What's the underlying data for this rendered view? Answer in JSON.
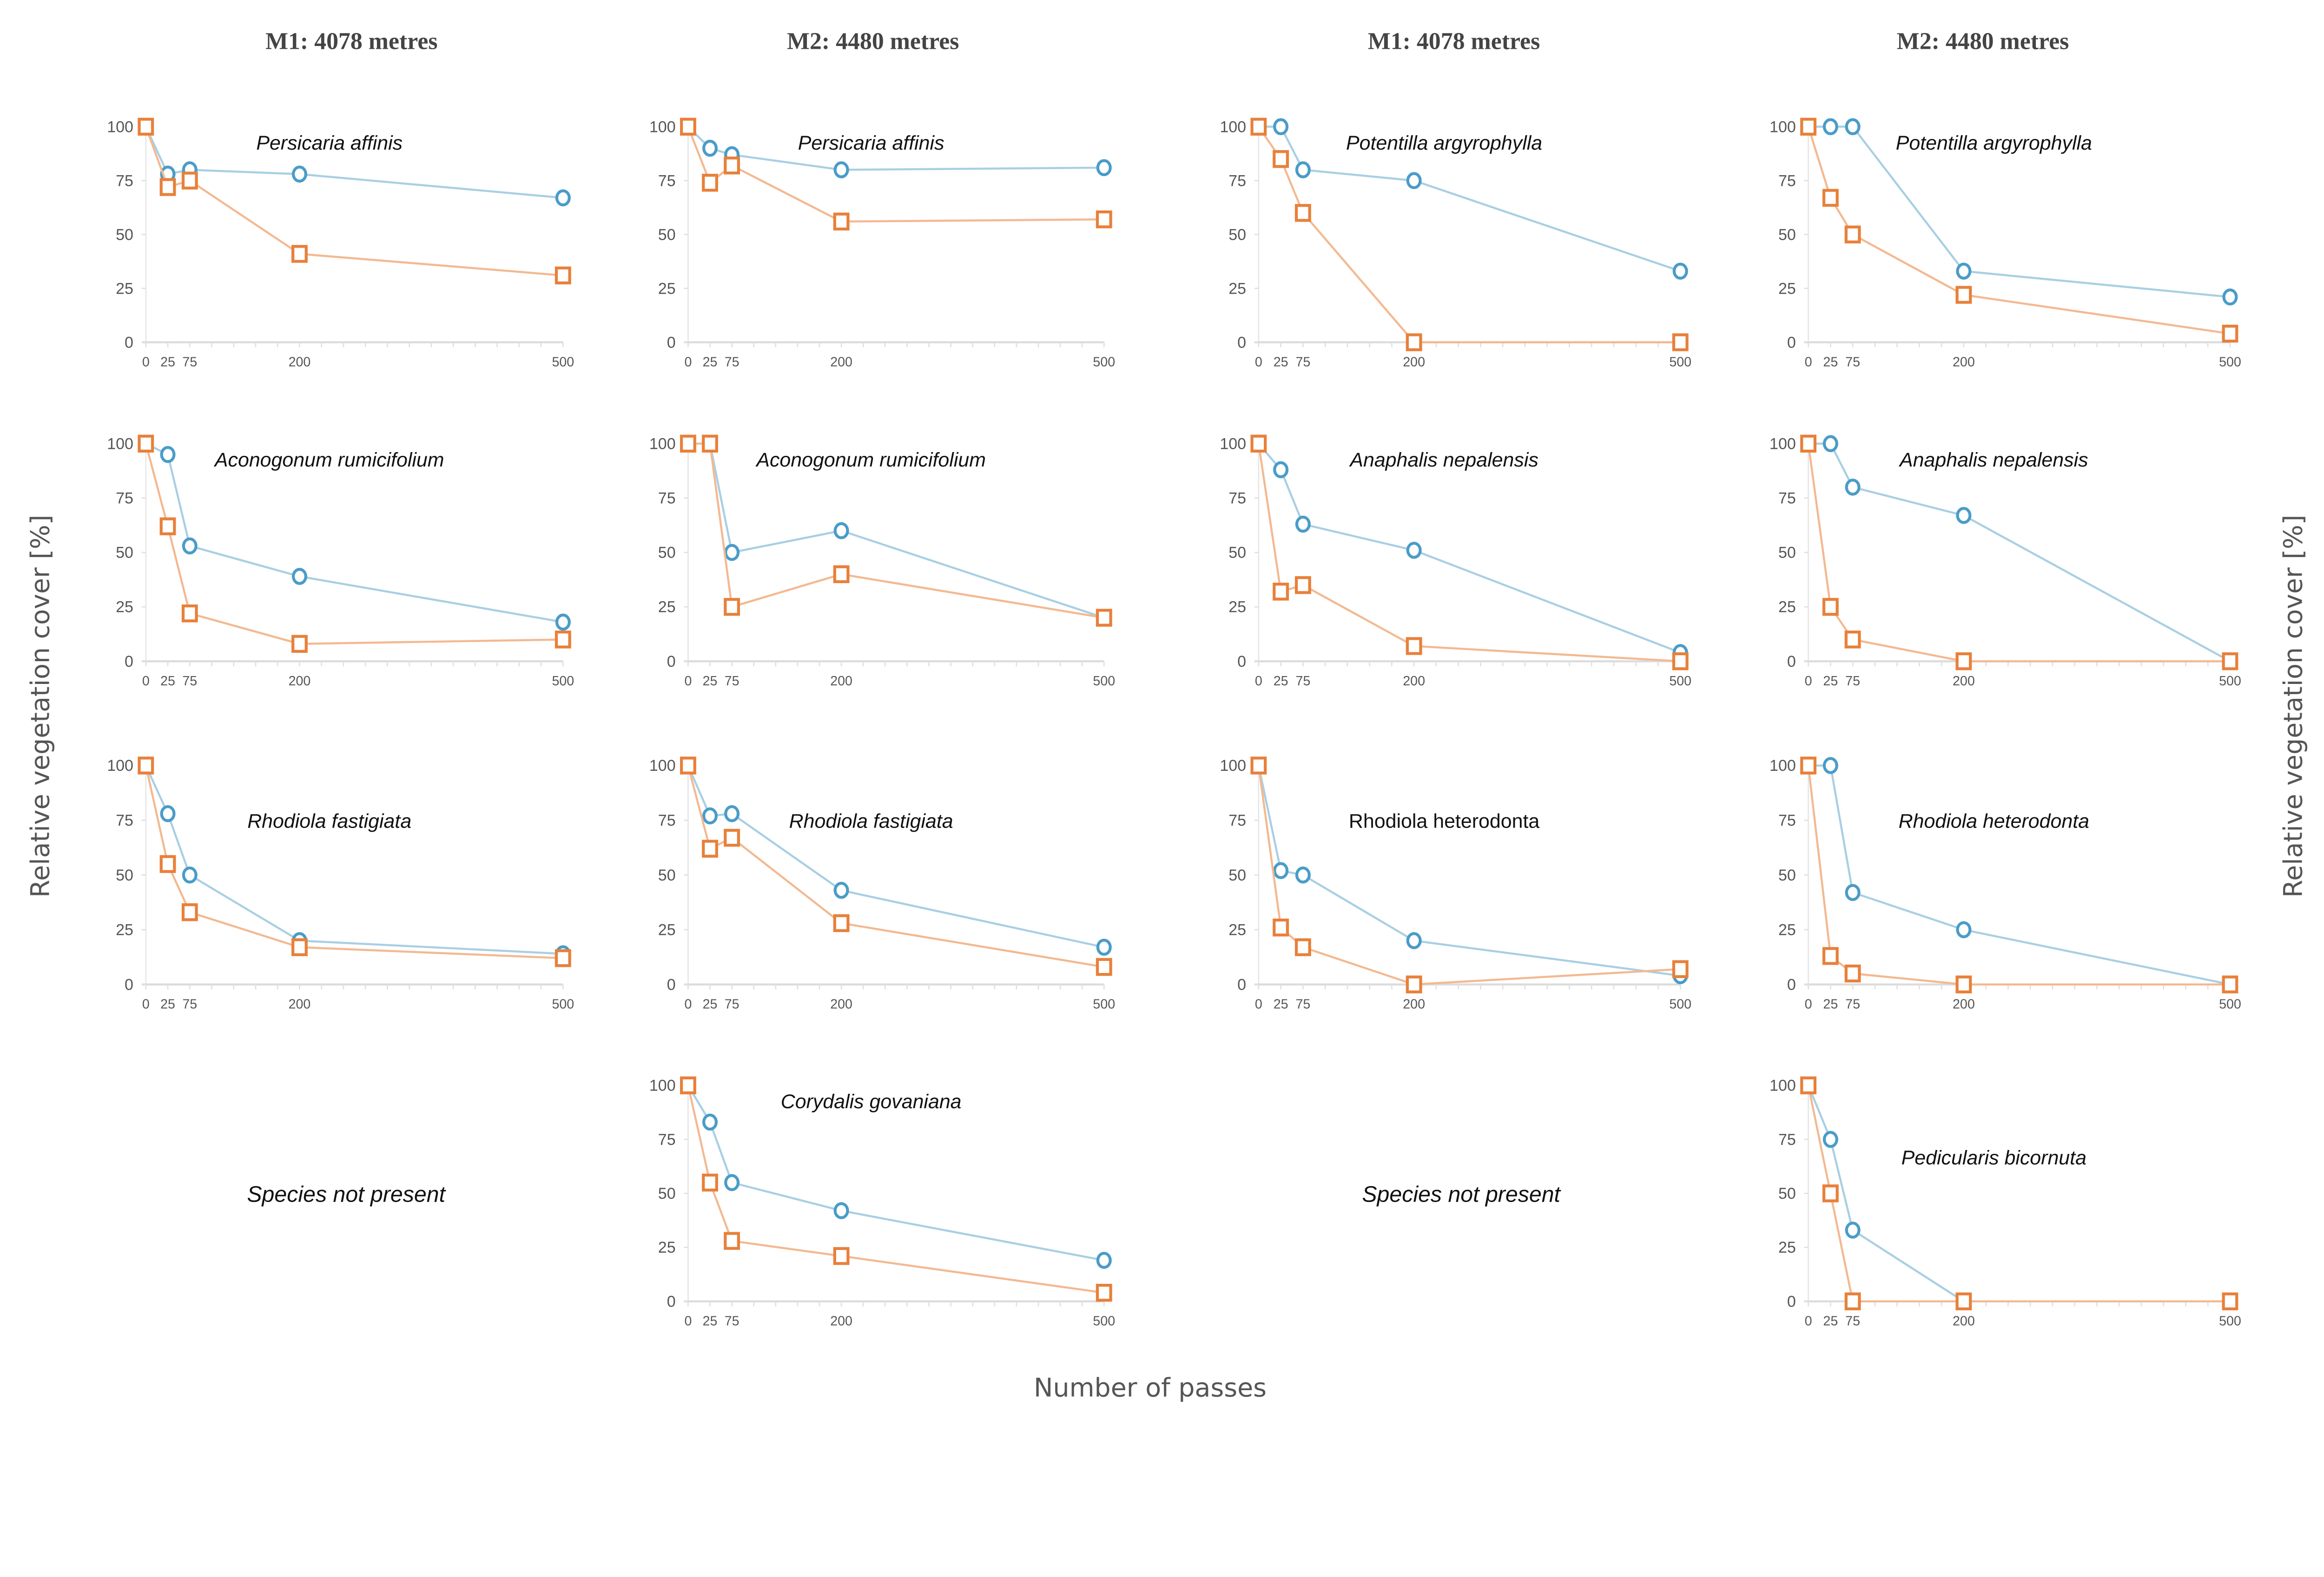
{
  "axis": {
    "ylabel": "Relative vegetation cover [%]",
    "xlabel": "Number of passes"
  },
  "column_headers": [
    "M1: 4078 metres",
    "M2: 4480 metres",
    "M1: 4078 metres",
    "M2: 4480 metres"
  ],
  "colors": {
    "blue_marker": "#4a9cc8",
    "blue_line": "#a9cfe3",
    "orange_marker": "#e8803a",
    "orange_line": "#f3b991"
  },
  "chart_data": {
    "type": "line",
    "x": [
      0,
      25,
      75,
      200,
      500
    ],
    "x_tick_labels": [
      "0",
      "25",
      "75",
      "200",
      "500"
    ],
    "y_ticks": [
      0,
      25,
      50,
      75,
      100
    ],
    "ylim": [
      0,
      100
    ],
    "grid": false,
    "marker_blue": "circle",
    "marker_orange": "square",
    "rows": [
      {
        "panels": [
          {
            "species": "Persicaria affinis",
            "blue": [
              100,
              78,
              80,
              78,
              67
            ],
            "orange": [
              100,
              72,
              75,
              41,
              31
            ]
          },
          {
            "species": "Persicaria affinis",
            "blue": [
              100,
              90,
              87,
              80,
              81
            ],
            "orange": [
              100,
              74,
              82,
              56,
              57
            ]
          },
          {
            "species": "Potentilla argyrophylla",
            "blue": [
              100,
              100,
              80,
              75,
              33
            ],
            "orange": [
              100,
              85,
              60,
              0,
              0
            ]
          },
          {
            "species": "Potentilla argyrophylla",
            "blue": [
              100,
              100,
              100,
              33,
              21
            ],
            "orange": [
              100,
              67,
              50,
              22,
              4
            ]
          }
        ]
      },
      {
        "panels": [
          {
            "species": "Aconogonum rumicifolium",
            "blue": [
              100,
              95,
              53,
              39,
              18
            ],
            "orange": [
              100,
              62,
              22,
              8,
              10
            ]
          },
          {
            "species": "Aconogonum rumicifolium",
            "blue": [
              100,
              100,
              50,
              60,
              20
            ],
            "orange": [
              100,
              100,
              25,
              40,
              20
            ]
          },
          {
            "species": "Anaphalis nepalensis",
            "blue": [
              100,
              88,
              63,
              51,
              4
            ],
            "orange": [
              100,
              32,
              35,
              7,
              0
            ]
          },
          {
            "species": "Anaphalis nepalensis",
            "blue": [
              100,
              100,
              80,
              67,
              0
            ],
            "orange": [
              100,
              25,
              10,
              0,
              0
            ]
          }
        ]
      },
      {
        "panels": [
          {
            "species": "Rhodiola fastigiata",
            "blue": [
              100,
              78,
              50,
              20,
              14
            ],
            "orange": [
              100,
              55,
              33,
              17,
              12
            ]
          },
          {
            "species": "Rhodiola fastigiata",
            "blue": [
              100,
              77,
              78,
              43,
              17
            ],
            "orange": [
              100,
              62,
              67,
              28,
              8
            ]
          },
          {
            "species": "Rhodiola heterodonta",
            "blue": [
              100,
              52,
              50,
              20,
              4
            ],
            "orange": [
              100,
              26,
              17,
              0,
              7
            ]
          },
          {
            "species": "Rhodiola heterodonta",
            "blue": [
              100,
              100,
              42,
              25,
              0
            ],
            "orange": [
              100,
              13,
              5,
              0,
              0
            ]
          }
        ]
      },
      {
        "panels": [
          {
            "note": "Species not present"
          },
          {
            "species": "Corydalis govaniana",
            "blue": [
              100,
              83,
              55,
              42,
              19
            ],
            "orange": [
              100,
              55,
              28,
              21,
              4
            ]
          },
          {
            "note": "Species not present"
          },
          {
            "species": "Pedicularis bicornuta",
            "blue": [
              100,
              75,
              33,
              0,
              0
            ],
            "orange": [
              100,
              50,
              0,
              0,
              0
            ]
          }
        ]
      }
    ]
  }
}
